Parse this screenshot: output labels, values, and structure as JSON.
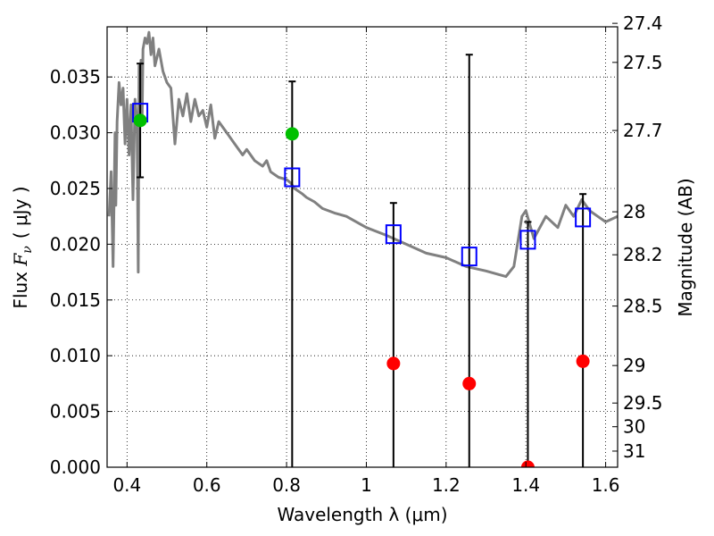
{
  "chart_data": {
    "type": "scatter",
    "xlabel": "Wavelength  λ (μm)",
    "ylabel": "Flux  F_ν  ( μJy )",
    "ylabel_parts": {
      "pre": "Flux",
      "sym": "F",
      "sub": "ν",
      "post": "( μJy )"
    },
    "y2label": "Magnitude (AB)",
    "xlim": [
      0.35,
      1.63
    ],
    "ylim": [
      0.0,
      0.0395
    ],
    "grid": true,
    "x_ticks": [
      0.4,
      0.6,
      0.8,
      1.0,
      1.2,
      1.4,
      1.6
    ],
    "x_tick_labels": [
      "0.4",
      "0.6",
      "0.8",
      "1",
      "1.2",
      "1.4",
      "1.6"
    ],
    "y_ticks": [
      0.0,
      0.005,
      0.01,
      0.015,
      0.02,
      0.025,
      0.03,
      0.035
    ],
    "y_tick_labels": [
      "0.000",
      "0.005",
      "0.010",
      "0.015",
      "0.020",
      "0.025",
      "0.030",
      "0.035"
    ],
    "y2_ticks": [
      27.4,
      27.5,
      27.7,
      28,
      28.2,
      28.5,
      29,
      29.5,
      30,
      31
    ],
    "y2_tick_labels": [
      "27.4",
      "27.5",
      "27.7",
      "28",
      "28.2",
      "28.5",
      "29",
      "29.5",
      "30",
      "31"
    ],
    "series": [
      {
        "kind": "line",
        "color": "#808080",
        "x": [
          0.355,
          0.36,
          0.365,
          0.37,
          0.372,
          0.375,
          0.38,
          0.385,
          0.39,
          0.395,
          0.4,
          0.405,
          0.41,
          0.415,
          0.42,
          0.425,
          0.428,
          0.43,
          0.432,
          0.435,
          0.438,
          0.44,
          0.445,
          0.45,
          0.455,
          0.46,
          0.465,
          0.47,
          0.48,
          0.49,
          0.5,
          0.51,
          0.52,
          0.53,
          0.54,
          0.55,
          0.56,
          0.57,
          0.58,
          0.59,
          0.6,
          0.61,
          0.62,
          0.63,
          0.65,
          0.67,
          0.69,
          0.7,
          0.72,
          0.74,
          0.75,
          0.76,
          0.78,
          0.8,
          0.81,
          0.82,
          0.84,
          0.85,
          0.87,
          0.89,
          0.92,
          0.95,
          1.0,
          1.05,
          1.1,
          1.15,
          1.2,
          1.25,
          1.3,
          1.35,
          1.37,
          1.39,
          1.4,
          1.42,
          1.45,
          1.48,
          1.5,
          1.52,
          1.54,
          1.56,
          1.58,
          1.6,
          1.63
        ],
        "y": [
          0.0225,
          0.0265,
          0.018,
          0.03,
          0.0235,
          0.031,
          0.0345,
          0.0325,
          0.034,
          0.029,
          0.033,
          0.028,
          0.0325,
          0.024,
          0.033,
          0.031,
          0.0175,
          0.036,
          0.0335,
          0.0365,
          0.0315,
          0.0375,
          0.0385,
          0.038,
          0.039,
          0.037,
          0.0385,
          0.036,
          0.0375,
          0.0355,
          0.0345,
          0.034,
          0.029,
          0.033,
          0.0315,
          0.0335,
          0.031,
          0.033,
          0.0315,
          0.032,
          0.0305,
          0.0325,
          0.0295,
          0.031,
          0.03,
          0.029,
          0.028,
          0.0285,
          0.0275,
          0.027,
          0.0275,
          0.0265,
          0.026,
          0.0258,
          0.0255,
          0.025,
          0.0245,
          0.0242,
          0.0238,
          0.0232,
          0.0228,
          0.0225,
          0.0215,
          0.0208,
          0.02,
          0.0192,
          0.0188,
          0.018,
          0.0176,
          0.0171,
          0.018,
          0.0225,
          0.023,
          0.0205,
          0.0225,
          0.0215,
          0.0235,
          0.0225,
          0.024,
          0.023,
          0.0225,
          0.022,
          0.0225
        ]
      },
      {
        "kind": "errorbar",
        "color": "#000000",
        "x": [
          0.433,
          0.814,
          1.068,
          1.258,
          1.405,
          1.543
        ],
        "y_low": [
          0.026,
          0.0,
          0.0,
          0.0,
          0.0,
          0.0
        ],
        "y_high": [
          0.0362,
          0.0346,
          0.0237,
          0.037,
          0.022,
          0.0245
        ]
      },
      {
        "kind": "scatter",
        "marker": "square-open",
        "color": "#0000ff",
        "x": [
          0.433,
          0.814,
          1.068,
          1.258,
          1.405,
          1.543
        ],
        "y": [
          0.0318,
          0.026,
          0.0209,
          0.0189,
          0.0204,
          0.0224
        ]
      },
      {
        "kind": "scatter",
        "marker": "circle",
        "color": "#00c000",
        "x": [
          0.433,
          0.814
        ],
        "y": [
          0.0311,
          0.0299
        ]
      },
      {
        "kind": "scatter",
        "marker": "circle",
        "color": "#ff0000",
        "x": [
          1.068,
          1.258,
          1.405,
          1.543
        ],
        "y": [
          0.0093,
          0.0075,
          0.0,
          0.0095
        ]
      }
    ]
  }
}
